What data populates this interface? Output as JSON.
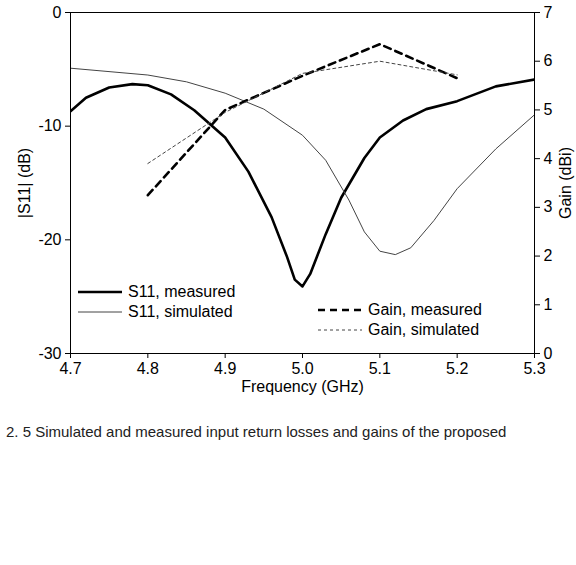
{
  "chart_data": {
    "type": "line",
    "x_label": "Frequency (GHz)",
    "y_label": "|S11| (dB)",
    "y2_label": "Gain (dBi)",
    "caption": "2. 5    Simulated and measured input return losses and gains of the proposed",
    "xlim": [
      4.7,
      5.3
    ],
    "xticks": [
      4.7,
      4.8,
      4.9,
      {
        "value": 5,
        "label": "5.0"
      },
      5.1,
      5.2,
      5.3
    ],
    "ylim": [
      -30,
      0
    ],
    "yticks": [
      -30,
      -20,
      -10,
      0
    ],
    "y2lim": [
      0,
      7
    ],
    "y2ticks": [
      0,
      1,
      2,
      3,
      4,
      5,
      6,
      7
    ],
    "legend": "bottom",
    "series": [
      {
        "name": "S11, measured",
        "color": "#000000",
        "line_style": "solid",
        "x": [
          4.7,
          4.72,
          4.75,
          4.78,
          4.8,
          4.83,
          4.86,
          4.9,
          4.93,
          4.96,
          4.98,
          4.99,
          5.0,
          5.01,
          5.03,
          5.05,
          5.08,
          5.1,
          5.13,
          5.16,
          5.2,
          5.25,
          5.3
        ],
        "values": [
          -8.7,
          -7.5,
          -6.6,
          -6.3,
          -6.4,
          -7.2,
          -8.6,
          -11,
          -14,
          -18,
          -21.5,
          -23.5,
          -24.1,
          -23,
          -19.5,
          -16.3,
          -12.8,
          -11,
          -9.5,
          -8.5,
          -7.8,
          -6.5,
          -5.9
        ]
      },
      {
        "name": "S11, simulated",
        "color": "#444444",
        "line_style": "solid",
        "x": [
          4.7,
          4.8,
          4.85,
          4.9,
          4.95,
          5.0,
          5.03,
          5.06,
          5.08,
          5.1,
          5.12,
          5.14,
          5.17,
          5.2,
          5.25,
          5.3
        ],
        "values": [
          -4.9,
          -5.5,
          -6.1,
          -7.1,
          -8.5,
          -10.8,
          -13,
          -16.5,
          -19.3,
          -21,
          -21.3,
          -20.7,
          -18.3,
          -15.5,
          -12,
          -9
        ]
      },
      {
        "name": "Gain, measured",
        "color": "#000000",
        "line_style": "dashed",
        "axis": "y2",
        "x": [
          4.8,
          4.9,
          5.0,
          5.1,
          5.2
        ],
        "values": [
          3.25,
          5.0,
          5.7,
          6.35,
          5.65
        ]
      },
      {
        "name": "Gain, simulated",
        "color": "#444444",
        "line_style": "dotted",
        "axis": "y2",
        "x": [
          4.8,
          4.9,
          5.0,
          5.1,
          5.2
        ],
        "values": [
          3.9,
          4.95,
          5.75,
          6.0,
          5.72
        ]
      }
    ]
  }
}
